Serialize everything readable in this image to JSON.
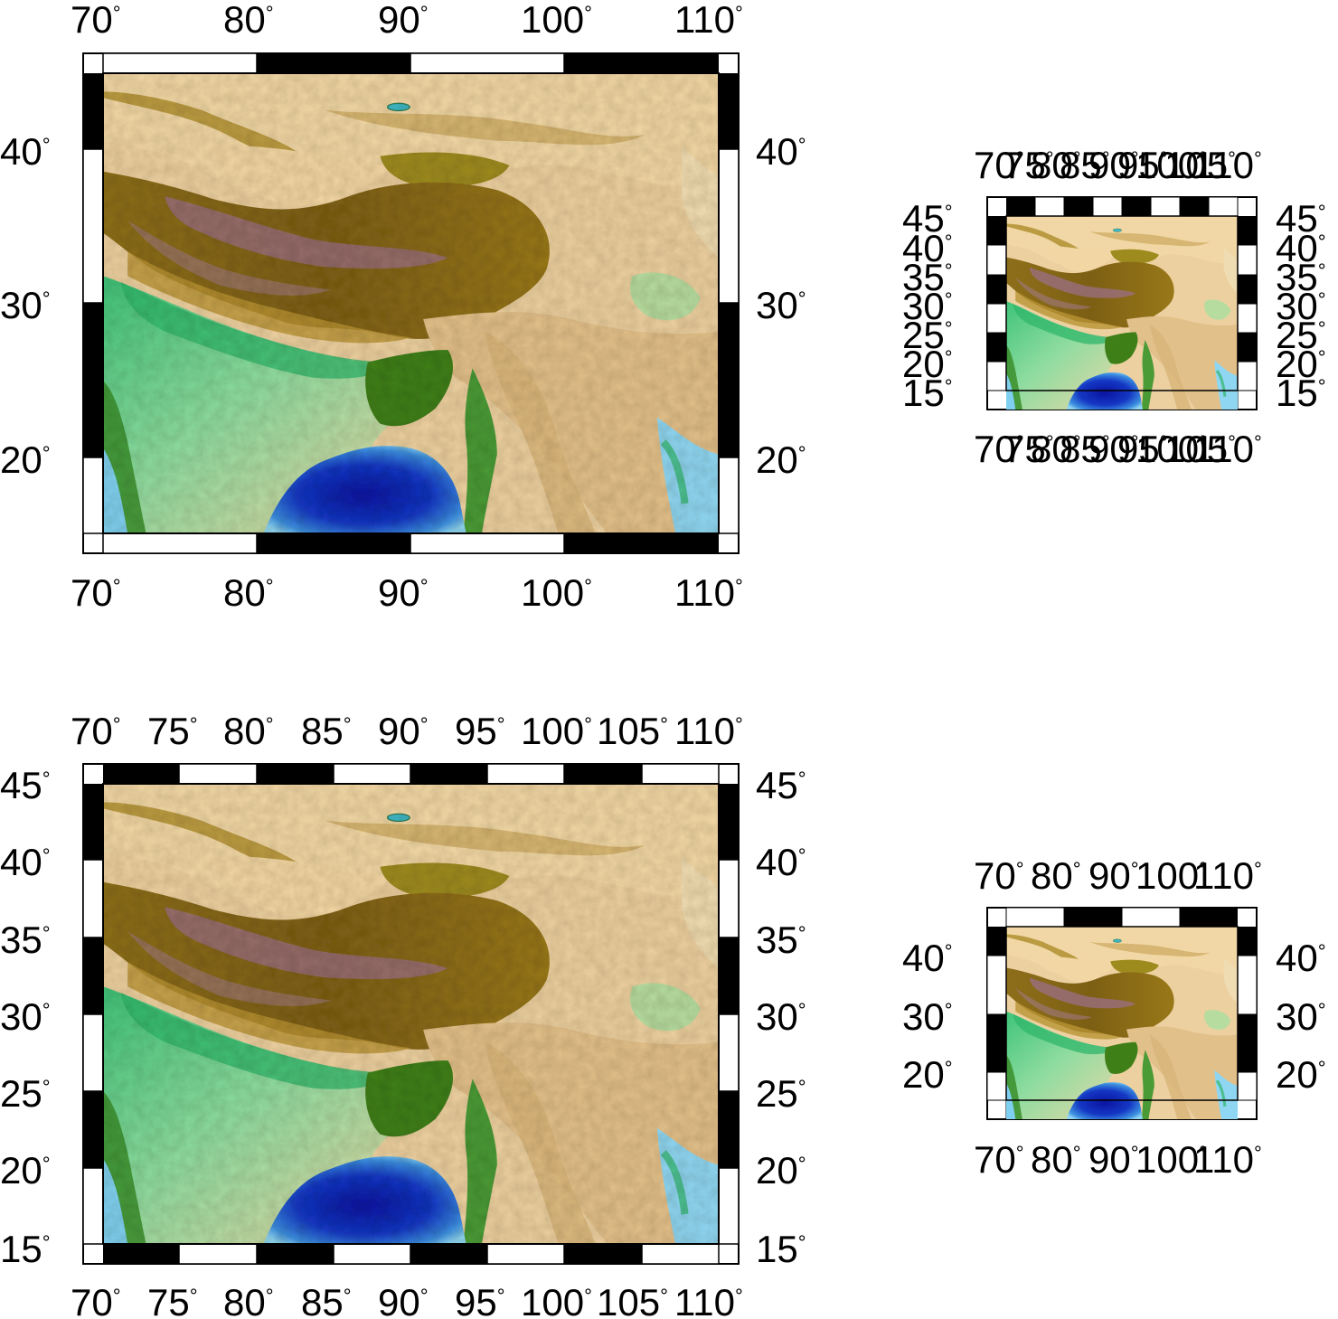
{
  "units": {
    "degree_symbol": "°"
  },
  "palette": {
    "deep_ocean": "#0a1aa8",
    "ocean": "#1f6fd6",
    "shallow": "#8fd6f2",
    "lowland": "#2fb56a",
    "plain": "#8fdca0",
    "delta": "#3f7f18",
    "upland": "#e8c88f",
    "desert": "#f1d7a5",
    "plateau": "#8a6a12",
    "olive": "#9a8518",
    "peaks": "#9b6f86",
    "frame_black": "#000000",
    "frame_white": "#ffffff"
  },
  "maps": [
    {
      "id": "map-large-top",
      "lon_labels_top": [
        "70",
        "80",
        "90",
        "100",
        "110"
      ],
      "lon_labels_bottom": [
        "70",
        "80",
        "90",
        "100",
        "110"
      ],
      "lat_labels_left": [
        "40",
        "30",
        "20"
      ],
      "lat_labels_right": [
        "40",
        "30",
        "20"
      ],
      "lon_range": [
        70,
        110
      ],
      "lat_range": [
        15,
        45
      ],
      "frame_interval": 10
    },
    {
      "id": "map-small-top",
      "lon_labels_top": [
        "70",
        "75",
        "80",
        "85",
        "90",
        "95",
        "100",
        "105",
        "110"
      ],
      "lon_labels_bottom": [
        "70",
        "75",
        "80",
        "85",
        "90",
        "95",
        "100",
        "105",
        "110"
      ],
      "lat_labels_left": [
        "45",
        "40",
        "35",
        "30",
        "25",
        "20",
        "15"
      ],
      "lat_labels_right": [
        "45",
        "40",
        "35",
        "30",
        "25",
        "20",
        "15"
      ],
      "lon_range": [
        70,
        110
      ],
      "lat_range": [
        15,
        45
      ],
      "frame_interval": 5
    },
    {
      "id": "map-large-bottom",
      "lon_labels_top": [
        "70",
        "75",
        "80",
        "85",
        "90",
        "95",
        "100",
        "105",
        "110"
      ],
      "lon_labels_bottom": [
        "70",
        "75",
        "80",
        "85",
        "90",
        "95",
        "100",
        "105",
        "110"
      ],
      "lat_labels_left": [
        "45",
        "40",
        "35",
        "30",
        "25",
        "20",
        "15"
      ],
      "lat_labels_right": [
        "45",
        "40",
        "35",
        "30",
        "25",
        "20",
        "15"
      ],
      "lon_range": [
        70,
        110
      ],
      "lat_range": [
        15,
        45
      ],
      "frame_interval": 5
    },
    {
      "id": "map-small-bottom",
      "lon_labels_top": [
        "70",
        "80",
        "90",
        "100",
        "110"
      ],
      "lon_labels_bottom": [
        "70",
        "80",
        "90",
        "100",
        "110"
      ],
      "lat_labels_left": [
        "40",
        "30",
        "20"
      ],
      "lat_labels_right": [
        "40",
        "30",
        "20"
      ],
      "lon_range": [
        70,
        110
      ],
      "lat_range": [
        15,
        45
      ],
      "frame_interval": 10
    }
  ]
}
